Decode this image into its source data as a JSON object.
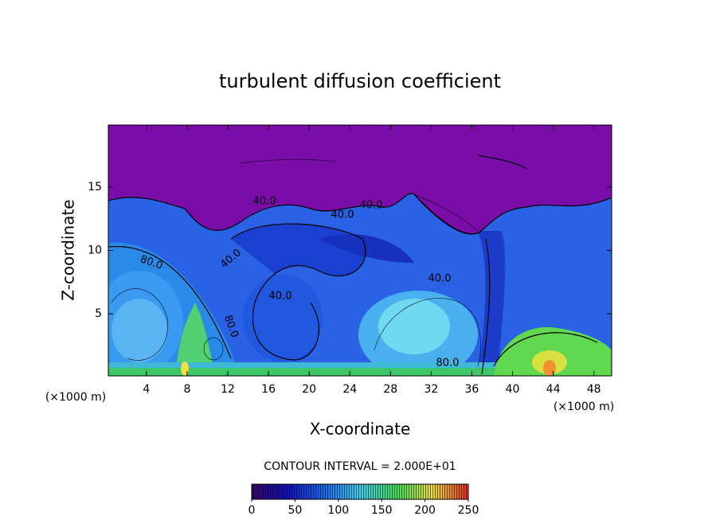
{
  "chart_data": {
    "type": "contour",
    "title": "turbulent diffusion coefficient",
    "x_label": "X-coordinate",
    "y_label": "Z-coordinate",
    "x_unit_label": "(×1000 m)",
    "x_unit_label_right": "(×1000 m)",
    "xlim": [
      0.25,
      49.75
    ],
    "xticks": [
      4,
      8,
      12,
      16,
      20,
      24,
      28,
      32,
      36,
      40,
      44,
      48
    ],
    "ylim": [
      0.1,
      19.9
    ],
    "yticks": [
      5,
      10,
      15
    ],
    "contour_labels": [
      "80.0",
      "40.0",
      "40.0",
      "40.0",
      "40.0",
      "40.0",
      "40.0",
      "80.0",
      "80.0"
    ],
    "contour_interval": "CONTOUR INTERVAL = 2.000E+01",
    "colorbar": {
      "lim": [
        0,
        250
      ],
      "ticks": [
        0,
        50,
        100,
        150,
        200,
        250
      ],
      "colors": [
        "#3a0070",
        "#1010c0",
        "#1a6af0",
        "#40d0f0",
        "#40e060",
        "#f0e040",
        "#e03020"
      ]
    }
  }
}
